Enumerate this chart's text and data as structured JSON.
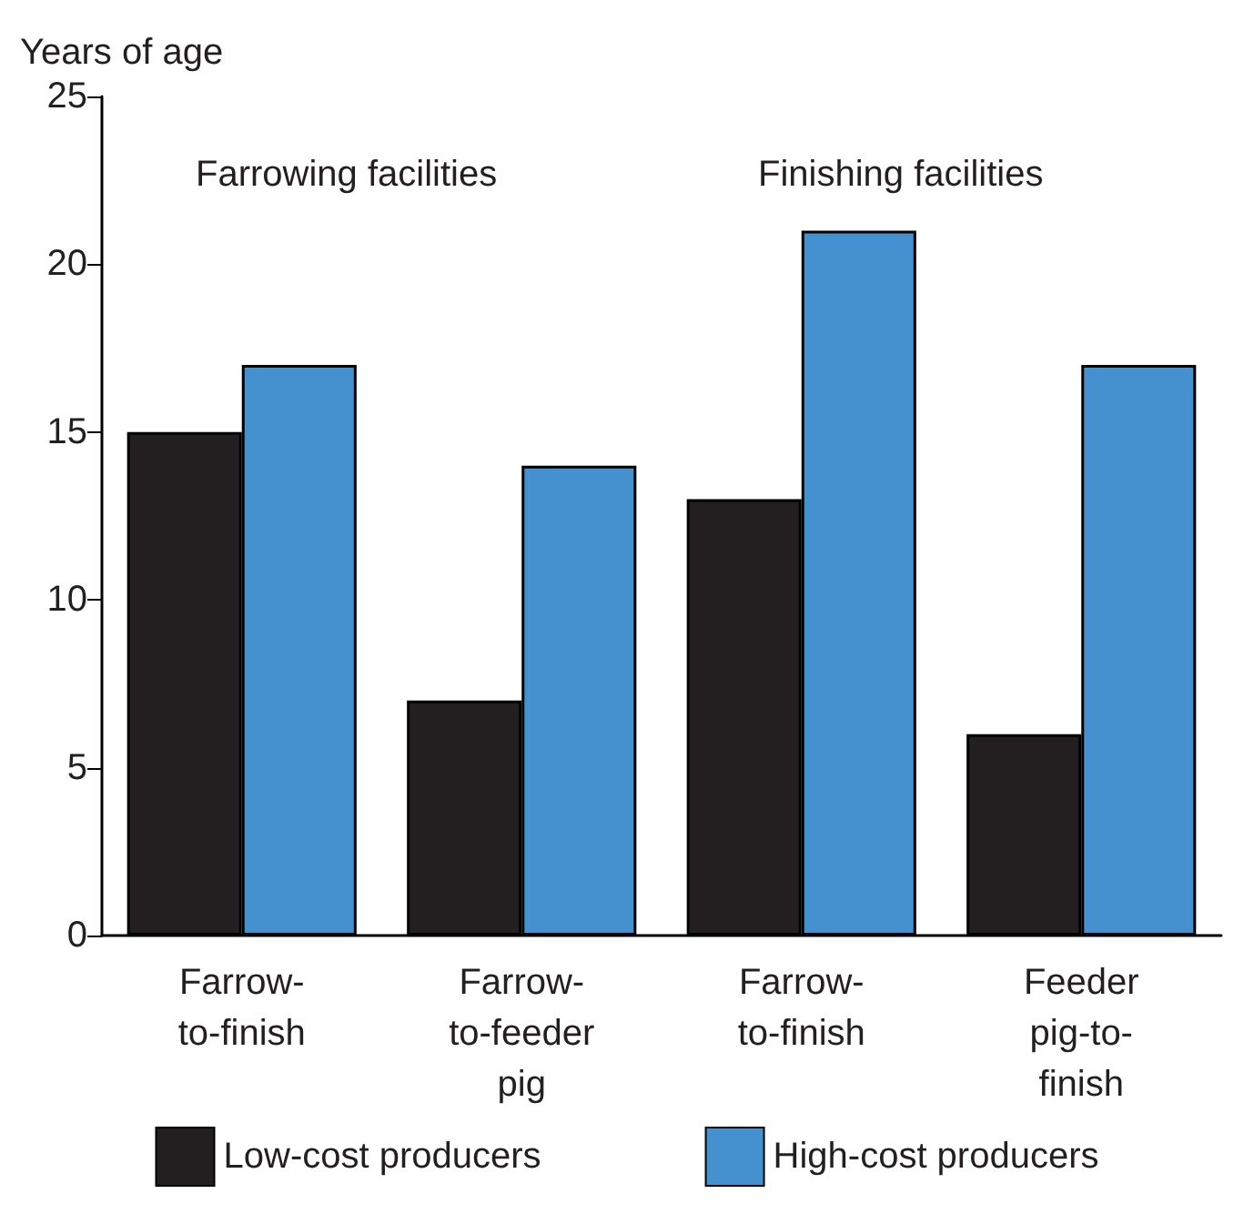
{
  "chart_data": {
    "type": "bar",
    "ylabel": "Years of age",
    "categories": [
      "Farrow-\nto-finish",
      "Farrow-\nto-feeder\npig",
      "Farrow-\nto-finish",
      "Feeder\npig-to-\nfinish"
    ],
    "series": [
      {
        "name": "Low-cost producers",
        "color": "#231f20",
        "values": [
          15,
          7,
          13,
          6
        ]
      },
      {
        "name": "High-cost producers",
        "color": "#4591d0",
        "values": [
          17,
          14,
          21,
          17
        ]
      }
    ],
    "ylim": [
      0,
      25
    ],
    "yticks": [
      0,
      5,
      10,
      15,
      20,
      25
    ],
    "grid": false,
    "legend": "bottom",
    "annotations": [
      "Farrowing facilities",
      "Finishing facilities"
    ]
  }
}
